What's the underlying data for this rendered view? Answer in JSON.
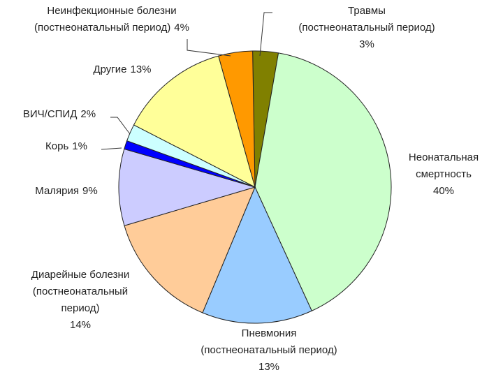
{
  "chart_data": {
    "type": "pie",
    "categories": [
      [
        "Травмы",
        "(постнеонатальный период)"
      ],
      [
        "Неонатальная",
        "смертность"
      ],
      [
        "Пневмония",
        "(постнеонатальный период)"
      ],
      [
        "Диарейные болезни",
        "(постнеонатальный",
        "период)"
      ],
      [
        "Малярия"
      ],
      [
        "Корь"
      ],
      [
        "ВИЧ/СПИД"
      ],
      [
        "Другие"
      ],
      [
        "Неинфекционные болезни",
        "(постнеонатальный период)"
      ]
    ],
    "values": [
      3,
      40,
      13,
      14,
      9,
      1,
      2,
      13,
      4
    ],
    "value_labels": [
      "3%",
      "40%",
      "13%",
      "14%",
      "9%",
      "1%",
      "2%",
      "13%",
      "4%"
    ],
    "colors": [
      "#808000",
      "#ccffcc",
      "#99ccff",
      "#ffcc99",
      "#ccccff",
      "#0000ff",
      "#ccffff",
      "#ffff99",
      "#ff9900"
    ]
  }
}
